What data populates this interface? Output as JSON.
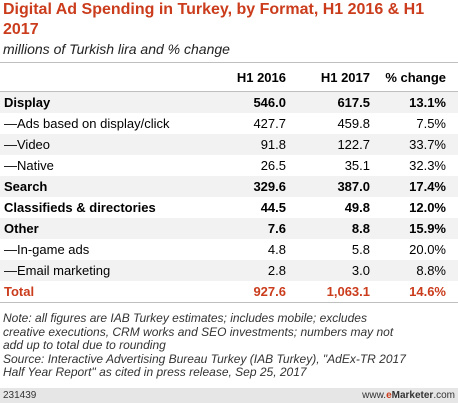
{
  "title": "Digital Ad Spending in Turkey, by Format, H1 2016 & H1 2017",
  "subtitle": "millions of Turkish lira and % change",
  "chart_data": {
    "type": "table",
    "columns": [
      "",
      "H1 2016",
      "H1 2017",
      "% change"
    ],
    "rows": [
      {
        "label": "Display",
        "h1_2016": "546.0",
        "h1_2017": "617.5",
        "change": "13.1%",
        "style": "bold"
      },
      {
        "label": "—Ads based on display/click",
        "h1_2016": "427.7",
        "h1_2017": "459.8",
        "change": "7.5%",
        "style": "normal"
      },
      {
        "label": "—Video",
        "h1_2016": "91.8",
        "h1_2017": "122.7",
        "change": "33.7%",
        "style": "normal"
      },
      {
        "label": "—Native",
        "h1_2016": "26.5",
        "h1_2017": "35.1",
        "change": "32.3%",
        "style": "normal"
      },
      {
        "label": "Search",
        "h1_2016": "329.6",
        "h1_2017": "387.0",
        "change": "17.4%",
        "style": "bold"
      },
      {
        "label": "Classifieds & directories",
        "h1_2016": "44.5",
        "h1_2017": "49.8",
        "change": "12.0%",
        "style": "bold"
      },
      {
        "label": "Other",
        "h1_2016": "7.6",
        "h1_2017": "8.8",
        "change": "15.9%",
        "style": "bold"
      },
      {
        "label": "—In-game ads",
        "h1_2016": "4.8",
        "h1_2017": "5.8",
        "change": "20.0%",
        "style": "normal"
      },
      {
        "label": "—Email marketing",
        "h1_2016": "2.8",
        "h1_2017": "3.0",
        "change": "8.8%",
        "style": "normal"
      },
      {
        "label": "Total",
        "h1_2016": "927.6",
        "h1_2017": "1,063.1",
        "change": "14.6%",
        "style": "total"
      }
    ]
  },
  "notes": [
    "Note: all figures are IAB Turkey estimates; includes mobile; excludes",
    "creative executions, CRM works and SEO investments; numbers may not",
    "add up to total due to rounding",
    "Source: Interactive Advertising Bureau Turkey (IAB Turkey), \"AdEx-TR 2017",
    "Half Year Report\" as cited in press release, Sep 25, 2017"
  ],
  "footer": {
    "id": "231439",
    "site": "www.",
    "brand_e": "e",
    "brand_marketer": "Marketer",
    "brand_com": ".com"
  },
  "colors": {
    "accent": "#ca3c1c",
    "row_shade": "#f2f2f2",
    "rule": "#bfbfbf",
    "footer_bg": "#e6e6e6"
  }
}
